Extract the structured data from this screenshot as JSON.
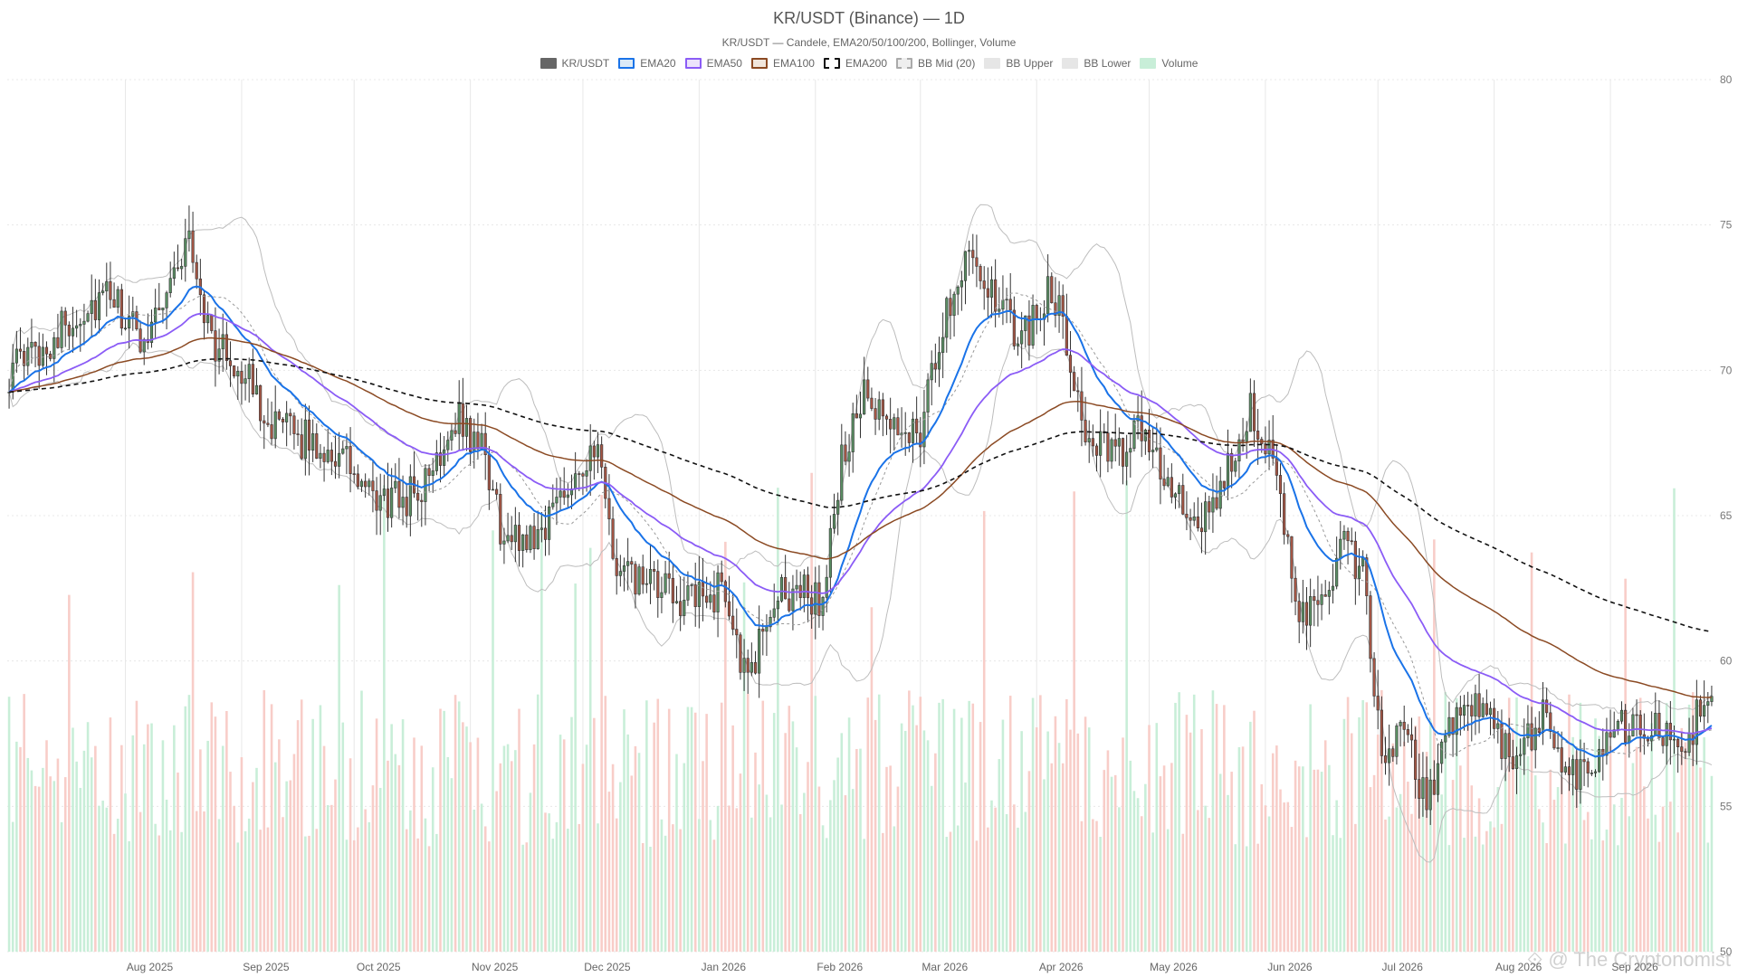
{
  "chart_data": {
    "type": "candlestick",
    "title": "KR/USDT (Binance) — 1D",
    "subtitle": "KR/USDT — Candele, EMA20/50/100/200, Bollinger, Volume",
    "ylim": [
      50,
      80
    ],
    "y_ticks": [
      50,
      55,
      60,
      65,
      70,
      75,
      80
    ],
    "x_range": [
      "2025-07-01",
      "2026-09-28"
    ],
    "x_ticks": [
      {
        "date": "2025-08-01",
        "label": "Aug 2025"
      },
      {
        "date": "2025-09-01",
        "label": "Sep 2025"
      },
      {
        "date": "2025-10-01",
        "label": "Oct 2025"
      },
      {
        "date": "2025-11-01",
        "label": "Nov 2025"
      },
      {
        "date": "2025-12-01",
        "label": "Dec 2025"
      },
      {
        "date": "2026-01-01",
        "label": "Jan 2026"
      },
      {
        "date": "2026-02-01",
        "label": "Feb 2026"
      },
      {
        "date": "2026-03-01",
        "label": "Mar 2026"
      },
      {
        "date": "2026-04-01",
        "label": "Apr 2026"
      },
      {
        "date": "2026-05-01",
        "label": "May 2026"
      },
      {
        "date": "2026-06-01",
        "label": "Jun 2026"
      },
      {
        "date": "2026-07-01",
        "label": "Jul 2026"
      },
      {
        "date": "2026-08-01",
        "label": "Aug 2026"
      },
      {
        "date": "2026-09-01",
        "label": "Sep 2026"
      }
    ],
    "legend": [
      {
        "name": "KR/USDT",
        "fill": "#666666",
        "stroke": "#666666",
        "dash": false
      },
      {
        "name": "EMA20",
        "fill": "#dbeaf7",
        "stroke": "#1a73e8",
        "dash": false
      },
      {
        "name": "EMA50",
        "fill": "#ece3fb",
        "stroke": "#8b5cf6",
        "dash": false
      },
      {
        "name": "EMA100",
        "fill": "#f1e6dc",
        "stroke": "#8b4a23",
        "dash": false
      },
      {
        "name": "EMA200",
        "fill": "#ffffff",
        "stroke": "#111111",
        "dash": true
      },
      {
        "name": "BB Mid (20)",
        "fill": "#eeeeee",
        "stroke": "#aaaaaa",
        "dash": true
      },
      {
        "name": "BB Upper",
        "fill": "#e6e6e6",
        "stroke": "#e6e6e6",
        "dash": false
      },
      {
        "name": "BB Lower",
        "fill": "#e6e6e6",
        "stroke": "#e6e6e6",
        "dash": false
      },
      {
        "name": "Volume",
        "fill": "#c8eed8",
        "stroke": "#c8eed8",
        "dash": false
      }
    ],
    "colors": {
      "up": "#5a8f63",
      "down": "#a65645",
      "vol_up": "#c8eed8",
      "vol_down": "#f8cdc8",
      "grid": "#e8e8e8"
    },
    "anchors": [
      {
        "date": "2025-07-01",
        "close": 69.9
      },
      {
        "date": "2025-07-10",
        "close": 70.8
      },
      {
        "date": "2025-07-20",
        "close": 72.0
      },
      {
        "date": "2025-07-28",
        "close": 72.5
      },
      {
        "date": "2025-08-05",
        "close": 71.0
      },
      {
        "date": "2025-08-12",
        "close": 72.8
      },
      {
        "date": "2025-08-18",
        "close": 74.5
      },
      {
        "date": "2025-08-24",
        "close": 71.0
      },
      {
        "date": "2025-09-01",
        "close": 70.0
      },
      {
        "date": "2025-09-10",
        "close": 68.0
      },
      {
        "date": "2025-09-20",
        "close": 67.5
      },
      {
        "date": "2025-09-28",
        "close": 67.0
      },
      {
        "date": "2025-10-05",
        "close": 65.5
      },
      {
        "date": "2025-10-12",
        "close": 65.5
      },
      {
        "date": "2025-10-20",
        "close": 66.0
      },
      {
        "date": "2025-10-28",
        "close": 68.5
      },
      {
        "date": "2025-11-05",
        "close": 67.0
      },
      {
        "date": "2025-11-10",
        "close": 64.0
      },
      {
        "date": "2025-11-20",
        "close": 64.5
      },
      {
        "date": "2025-11-28",
        "close": 66.5
      },
      {
        "date": "2025-12-05",
        "close": 67.0
      },
      {
        "date": "2025-12-10",
        "close": 63.0
      },
      {
        "date": "2025-12-20",
        "close": 62.5
      },
      {
        "date": "2025-12-31",
        "close": 62.0
      },
      {
        "date": "2026-01-08",
        "close": 62.5
      },
      {
        "date": "2026-01-14",
        "close": 59.0
      },
      {
        "date": "2026-01-20",
        "close": 62.0
      },
      {
        "date": "2026-01-28",
        "close": 62.5
      },
      {
        "date": "2026-02-03",
        "close": 62.0
      },
      {
        "date": "2026-02-08",
        "close": 67.0
      },
      {
        "date": "2026-02-14",
        "close": 69.0
      },
      {
        "date": "2026-02-20",
        "close": 68.0
      },
      {
        "date": "2026-03-01",
        "close": 68.0
      },
      {
        "date": "2026-03-08",
        "close": 72.0
      },
      {
        "date": "2026-03-14",
        "close": 74.5
      },
      {
        "date": "2026-03-20",
        "close": 72.5
      },
      {
        "date": "2026-03-28",
        "close": 71.0
      },
      {
        "date": "2026-04-05",
        "close": 73.0
      },
      {
        "date": "2026-04-10",
        "close": 70.5
      },
      {
        "date": "2026-04-15",
        "close": 67.5
      },
      {
        "date": "2026-04-22",
        "close": 67.0
      },
      {
        "date": "2026-04-30",
        "close": 68.0
      },
      {
        "date": "2026-05-08",
        "close": 65.5
      },
      {
        "date": "2026-05-15",
        "close": 64.5
      },
      {
        "date": "2026-05-22",
        "close": 66.5
      },
      {
        "date": "2026-05-28",
        "close": 69.0
      },
      {
        "date": "2026-06-02",
        "close": 67.0
      },
      {
        "date": "2026-06-10",
        "close": 62.0
      },
      {
        "date": "2026-06-15",
        "close": 61.5
      },
      {
        "date": "2026-06-22",
        "close": 64.0
      },
      {
        "date": "2026-06-27",
        "close": 63.0
      },
      {
        "date": "2026-07-02",
        "close": 56.5
      },
      {
        "date": "2026-07-08",
        "close": 57.5
      },
      {
        "date": "2026-07-14",
        "close": 55.0
      },
      {
        "date": "2026-07-20",
        "close": 58.0
      },
      {
        "date": "2026-07-26",
        "close": 58.5
      },
      {
        "date": "2026-08-02",
        "close": 57.5
      },
      {
        "date": "2026-08-08",
        "close": 56.5
      },
      {
        "date": "2026-08-14",
        "close": 58.5
      },
      {
        "date": "2026-08-20",
        "close": 56.0
      },
      {
        "date": "2026-08-26",
        "close": 56.5
      },
      {
        "date": "2026-09-01",
        "close": 57.5
      },
      {
        "date": "2026-09-07",
        "close": 58.0
      },
      {
        "date": "2026-09-14",
        "close": 57.5
      },
      {
        "date": "2026-09-20",
        "close": 57.0
      },
      {
        "date": "2026-09-25",
        "close": 58.3
      }
    ]
  },
  "watermark": "⟐ @ The Cryptonomist"
}
